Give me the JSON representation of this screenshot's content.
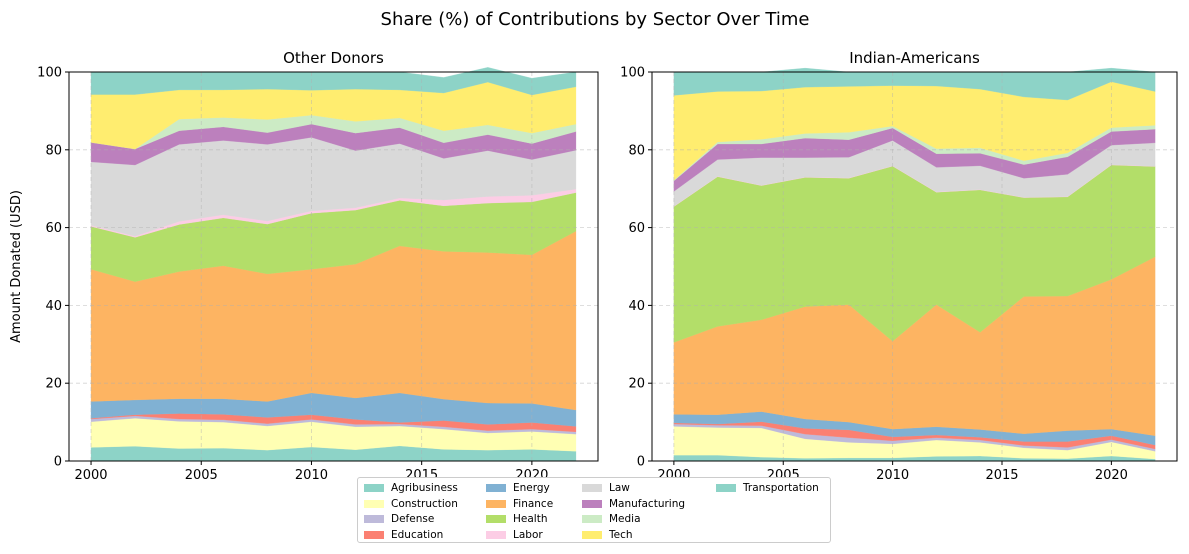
{
  "suptitle": "Share (%) of Contributions by Sector Over Time",
  "chart_data": [
    {
      "type": "area",
      "stacked": true,
      "title": "Other Donors",
      "ylabel": "Amount Donated (USD)",
      "xlabel": "",
      "xlim": [
        1999,
        2023
      ],
      "ylim": [
        0,
        100
      ],
      "x_ticks": [
        2000,
        2005,
        2010,
        2015,
        2020
      ],
      "y_ticks": [
        0,
        20,
        40,
        60,
        80,
        100
      ],
      "grid": true,
      "x": [
        2000,
        2002,
        2004,
        2006,
        2008,
        2010,
        2012,
        2014,
        2016,
        2018,
        2020,
        2022
      ],
      "series": [
        {
          "name": "Agribusiness",
          "values": [
            3.5,
            3.8,
            3.2,
            3.3,
            2.8,
            3.6,
            2.9,
            3.9,
            3.0,
            2.8,
            3.0,
            2.5
          ]
        },
        {
          "name": "Construction",
          "values": [
            6.6,
            7.2,
            7.0,
            6.7,
            6.2,
            6.5,
            5.9,
            5.1,
            5.2,
            4.4,
            4.6,
            4.4
          ]
        },
        {
          "name": "Defense",
          "values": [
            0.7,
            0.6,
            0.6,
            0.6,
            0.6,
            0.6,
            0.6,
            0.5,
            0.6,
            0.6,
            0.6,
            0.6
          ]
        },
        {
          "name": "Education",
          "values": [
            0.2,
            0.3,
            1.4,
            1.4,
            1.6,
            1.2,
            1.3,
            0.4,
            1.6,
            1.6,
            1.7,
            1.4
          ]
        },
        {
          "name": "Energy",
          "values": [
            4.3,
            3.8,
            3.8,
            4.0,
            4.1,
            5.6,
            5.5,
            7.6,
            5.5,
            5.5,
            4.9,
            4.2
          ]
        },
        {
          "name": "Finance",
          "values": [
            34.0,
            30.4,
            32.7,
            34.2,
            32.8,
            31.8,
            34.4,
            37.8,
            38.0,
            38.7,
            38.2,
            46.0
          ]
        },
        {
          "name": "Health",
          "values": [
            11.0,
            11.4,
            12.1,
            12.3,
            12.8,
            14.4,
            13.9,
            11.7,
            11.7,
            12.7,
            13.6,
            9.9
          ]
        },
        {
          "name": "Labor",
          "values": [
            0.3,
            0.3,
            0.8,
            0.8,
            0.8,
            0.6,
            0.6,
            0.6,
            1.5,
            1.7,
            1.7,
            0.9
          ]
        },
        {
          "name": "Law",
          "values": [
            16.3,
            18.3,
            19.8,
            19.1,
            19.7,
            18.9,
            14.7,
            14.0,
            10.7,
            11.8,
            9.2,
            10.0
          ]
        },
        {
          "name": "Manufacturing",
          "values": [
            5.0,
            4.1,
            3.5,
            3.5,
            3.0,
            3.4,
            4.5,
            4.1,
            4.0,
            4.1,
            4.1,
            4.8
          ]
        },
        {
          "name": "Media",
          "values": [
            0.0,
            0.0,
            3.0,
            2.4,
            3.4,
            2.3,
            3.0,
            2.5,
            3.1,
            2.5,
            2.7,
            1.9
          ]
        },
        {
          "name": "Tech",
          "values": [
            12.3,
            14.0,
            7.5,
            7.1,
            7.8,
            6.4,
            8.3,
            7.2,
            9.7,
            11.0,
            9.8,
            9.6
          ]
        },
        {
          "name": "Transportation",
          "values": [
            5.8,
            5.8,
            4.6,
            4.6,
            4.4,
            4.7,
            4.4,
            4.6,
            4.0,
            3.8,
            4.3,
            3.8
          ]
        }
      ]
    },
    {
      "type": "area",
      "stacked": true,
      "title": "Indian-Americans",
      "ylabel": "",
      "xlabel": "",
      "xlim": [
        1999,
        2023
      ],
      "ylim": [
        0,
        100
      ],
      "x_ticks": [
        2000,
        2005,
        2010,
        2015,
        2020
      ],
      "y_ticks": [
        0,
        20,
        40,
        60,
        80,
        100
      ],
      "grid": true,
      "x": [
        2000,
        2002,
        2004,
        2006,
        2008,
        2010,
        2012,
        2014,
        2016,
        2018,
        2020,
        2022
      ],
      "series": [
        {
          "name": "Agribusiness",
          "values": [
            1.5,
            1.5,
            1.0,
            0.7,
            0.8,
            0.8,
            1.2,
            1.3,
            0.7,
            0.6,
            1.3,
            0.5
          ]
        },
        {
          "name": "Construction",
          "values": [
            7.4,
            7.1,
            7.5,
            5.0,
            4.0,
            3.6,
            4.2,
            3.5,
            2.7,
            2.2,
            3.6,
            2.0
          ]
        },
        {
          "name": "Defense",
          "values": [
            0.6,
            0.6,
            0.6,
            1.2,
            1.2,
            0.8,
            0.6,
            0.6,
            0.6,
            0.7,
            0.6,
            0.6
          ]
        },
        {
          "name": "Education",
          "values": [
            0.3,
            0.3,
            1.0,
            1.5,
            2.0,
            1.0,
            0.7,
            0.7,
            1.0,
            1.5,
            1.0,
            1.0
          ]
        },
        {
          "name": "Energy",
          "values": [
            2.2,
            2.4,
            2.6,
            2.4,
            2.0,
            2.0,
            2.1,
            2.0,
            2.0,
            2.8,
            1.7,
            2.4
          ]
        },
        {
          "name": "Finance",
          "values": [
            18.5,
            22.7,
            23.6,
            28.9,
            30.2,
            22.6,
            31.4,
            25.0,
            35.3,
            34.6,
            38.5,
            46.0
          ]
        },
        {
          "name": "Health",
          "values": [
            34.9,
            38.5,
            34.5,
            33.2,
            32.5,
            45.0,
            28.9,
            36.6,
            25.4,
            25.5,
            29.4,
            23.2
          ]
        },
        {
          "name": "Labor",
          "values": [
            0.1,
            0.1,
            0.1,
            0.1,
            0.1,
            0.1,
            0.1,
            0.1,
            0.1,
            0.1,
            0.1,
            0.1
          ]
        },
        {
          "name": "Law",
          "values": [
            3.8,
            4.3,
            7.1,
            5.0,
            5.3,
            6.5,
            6.3,
            6.1,
            4.9,
            5.7,
            5.0,
            6.0
          ]
        },
        {
          "name": "Manufacturing",
          "values": [
            2.7,
            4.0,
            3.5,
            5.0,
            4.5,
            3.2,
            3.5,
            3.2,
            3.5,
            4.5,
            3.5,
            3.5
          ]
        },
        {
          "name": "Media",
          "values": [
            0.2,
            0.5,
            1.2,
            1.2,
            1.9,
            0.5,
            1.3,
            1.4,
            1.0,
            1.0,
            1.0,
            1.0
          ]
        },
        {
          "name": "Tech",
          "values": [
            21.8,
            13.0,
            12.4,
            11.9,
            11.8,
            10.4,
            16.1,
            15.1,
            16.4,
            13.6,
            11.8,
            8.7
          ]
        },
        {
          "name": "Transportation",
          "values": [
            6.0,
            5.0,
            4.9,
            4.9,
            3.7,
            3.5,
            3.6,
            4.4,
            6.4,
            7.2,
            3.5,
            5.0
          ]
        }
      ]
    }
  ],
  "legend": {
    "position": "bottom-center",
    "items": [
      {
        "label": "Agribusiness",
        "color": "#8dd3c7"
      },
      {
        "label": "Construction",
        "color": "#ffffb3"
      },
      {
        "label": "Defense",
        "color": "#bebada"
      },
      {
        "label": "Education",
        "color": "#fb8072"
      },
      {
        "label": "Energy",
        "color": "#80b1d3"
      },
      {
        "label": "Finance",
        "color": "#fdb462"
      },
      {
        "label": "Health",
        "color": "#b3de69"
      },
      {
        "label": "Labor",
        "color": "#fccde5"
      },
      {
        "label": "Law",
        "color": "#d9d9d9"
      },
      {
        "label": "Manufacturing",
        "color": "#bc80bd"
      },
      {
        "label": "Media",
        "color": "#ccebc5"
      },
      {
        "label": "Tech",
        "color": "#ffed6f"
      },
      {
        "label": "Transportation",
        "color": "#8dd3c7"
      }
    ]
  }
}
